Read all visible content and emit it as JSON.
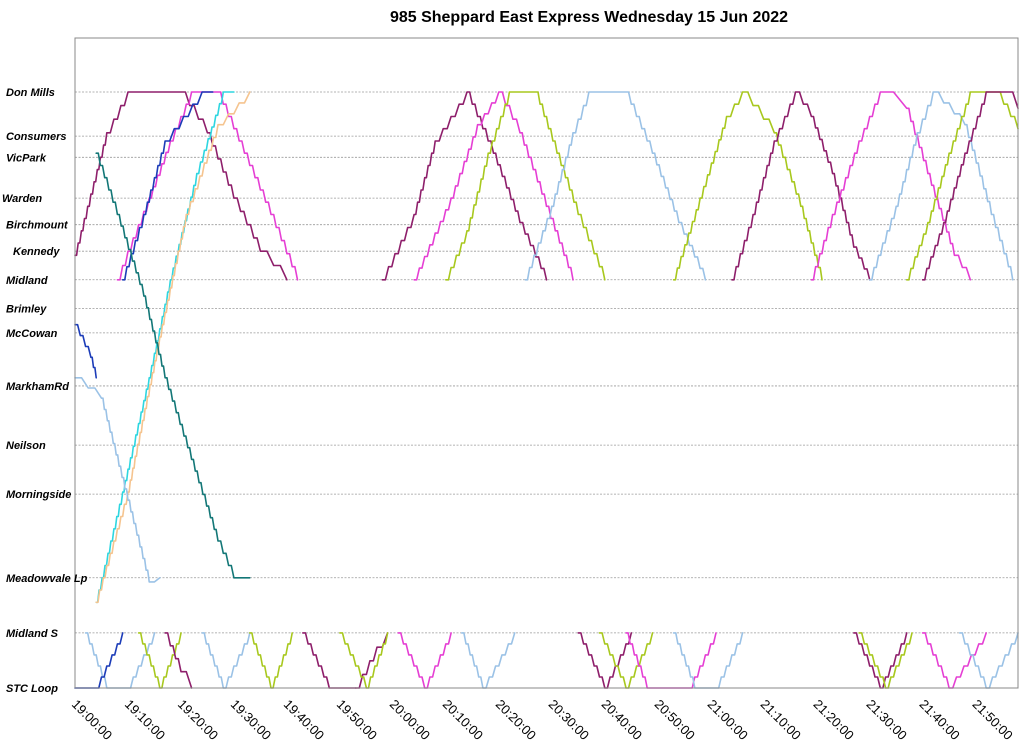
{
  "chart_data": {
    "type": "line",
    "title": "985 Sheppard East Express Wednesday 15 Jun 2022",
    "xlabel": "",
    "ylabel": "",
    "x_ticks": [
      "19:00:00",
      "19:10:00",
      "19:20:00",
      "19:30:00",
      "19:40:00",
      "19:50:00",
      "20:00:00",
      "20:10:00",
      "20:20:00",
      "20:30:00",
      "20:40:00",
      "20:50:00",
      "21:00:00",
      "21:10:00",
      "21:20:00",
      "21:30:00",
      "21:40:00",
      "21:50:00"
    ],
    "x_range_minutes_after_19": [
      0,
      178
    ],
    "stops": [
      {
        "name": "Don Mills",
        "pos": 0
      },
      {
        "name": "Consumers",
        "pos": 1.08
      },
      {
        "name": "VicPark",
        "pos": 1.6
      },
      {
        "name": "Warden",
        "pos": 2.6
      },
      {
        "name": "Birchmount",
        "pos": 3.25
      },
      {
        "name": "Kennedy",
        "pos": 3.9
      },
      {
        "name": "Midland",
        "pos": 4.6
      },
      {
        "name": "Brimley",
        "pos": 5.3
      },
      {
        "name": "McCowan",
        "pos": 5.9
      },
      {
        "name": "MarkhamRd",
        "pos": 7.2
      },
      {
        "name": "Neilson",
        "pos": 8.65
      },
      {
        "name": "Morningside",
        "pos": 9.85
      },
      {
        "name": "Meadowvale Lp",
        "pos": 11.9
      },
      {
        "name": "Midland S",
        "pos": 13.25
      },
      {
        "name": "STC Loop",
        "pos": 14.6
      }
    ],
    "grid": true,
    "legend": "none",
    "series": [
      {
        "color": "#8e1f6b",
        "points": [
          [
            0,
            4.0
          ],
          [
            3,
            2.5
          ],
          [
            6,
            1.0
          ],
          [
            10,
            0
          ],
          [
            20,
            0
          ],
          [
            25,
            1.0
          ],
          [
            30,
            2.6
          ],
          [
            35,
            3.9
          ],
          [
            40,
            4.6
          ]
        ]
      },
      {
        "color": "#e53fd4",
        "points": [
          [
            8,
            4.6
          ],
          [
            10,
            3.9
          ],
          [
            14,
            2.6
          ],
          [
            18,
            1.2
          ],
          [
            22,
            0
          ],
          [
            27,
            0
          ],
          [
            32,
            1.5
          ],
          [
            37,
            3.0
          ],
          [
            42,
            4.6
          ]
        ]
      },
      {
        "color": "#8e1f6b",
        "points": [
          [
            58,
            4.6
          ],
          [
            64,
            3.0
          ],
          [
            68,
            1.2
          ],
          [
            74,
            0
          ],
          [
            79,
            1.5
          ],
          [
            84,
            3.2
          ],
          [
            89,
            4.6
          ]
        ]
      },
      {
        "color": "#e53fd4",
        "points": [
          [
            64,
            4.6
          ],
          [
            71,
            2.6
          ],
          [
            76,
            0.8
          ],
          [
            80,
            0
          ],
          [
            84,
            1.0
          ],
          [
            89,
            2.8
          ],
          [
            94,
            4.6
          ]
        ]
      },
      {
        "color": "#a8c81e",
        "points": [
          [
            70,
            4.6
          ],
          [
            74,
            3.4
          ],
          [
            78,
            1.5
          ],
          [
            82,
            0
          ],
          [
            87,
            0
          ],
          [
            91,
            1.5
          ],
          [
            95,
            3.0
          ],
          [
            100,
            4.6
          ]
        ]
      },
      {
        "color": "#9bc2e6",
        "points": [
          [
            85,
            4.6
          ],
          [
            90,
            2.8
          ],
          [
            94,
            1.0
          ],
          [
            97,
            0
          ],
          [
            104,
            0
          ],
          [
            109,
            1.5
          ],
          [
            114,
            3.2
          ],
          [
            119,
            4.6
          ]
        ]
      },
      {
        "color": "#a8c81e",
        "points": [
          [
            113,
            4.6
          ],
          [
            118,
            2.6
          ],
          [
            123,
            0.6
          ],
          [
            126,
            0
          ],
          [
            132,
            1.0
          ],
          [
            137,
            2.8
          ],
          [
            141,
            4.6
          ]
        ]
      },
      {
        "color": "#8e1f6b",
        "points": [
          [
            124,
            4.6
          ],
          [
            128,
            3.0
          ],
          [
            132,
            1.2
          ],
          [
            136,
            0
          ],
          [
            139,
            0.6
          ],
          [
            143,
            2.0
          ],
          [
            147,
            3.8
          ],
          [
            150,
            4.6
          ]
        ]
      },
      {
        "color": "#e53fd4",
        "points": [
          [
            139,
            4.6
          ],
          [
            143,
            3.0
          ],
          [
            148,
            1.2
          ],
          [
            152,
            0
          ],
          [
            157,
            0.4
          ],
          [
            161,
            2.0
          ],
          [
            166,
            4.0
          ],
          [
            169,
            4.6
          ]
        ]
      },
      {
        "color": "#9bc2e6",
        "points": [
          [
            150,
            4.6
          ],
          [
            155,
            2.8
          ],
          [
            159,
            1.0
          ],
          [
            162,
            0
          ],
          [
            168,
            0.8
          ],
          [
            173,
            3.0
          ],
          [
            177,
            4.6
          ]
        ]
      },
      {
        "color": "#a8c81e",
        "points": [
          [
            157,
            4.6
          ],
          [
            161,
            3.2
          ],
          [
            165,
            1.5
          ],
          [
            169,
            0
          ],
          [
            174,
            0
          ],
          [
            178,
            0.9
          ]
        ]
      },
      {
        "color": "#8e1f6b",
        "points": [
          [
            160,
            4.6
          ],
          [
            164,
            3.2
          ],
          [
            168,
            1.5
          ],
          [
            172,
            0
          ],
          [
            176,
            0
          ],
          [
            178,
            0.4
          ]
        ]
      },
      {
        "color": "#1c3cb8",
        "points": [
          [
            9,
            4.6
          ],
          [
            13,
            3.0
          ],
          [
            17,
            1.2
          ],
          [
            24,
            0
          ],
          [
            26,
            0
          ]
        ]
      },
      {
        "color": "#2ed6e0",
        "points": [
          [
            4,
            12.5
          ],
          [
            9,
            9.8
          ],
          [
            14,
            7.0
          ],
          [
            18,
            4.6
          ],
          [
            23,
            2.0
          ],
          [
            28,
            0
          ],
          [
            30,
            0
          ]
        ]
      },
      {
        "color": "#f5c48f",
        "points": [
          [
            4,
            12.5
          ],
          [
            10,
            9.8
          ],
          [
            16,
            6.0
          ],
          [
            21,
            3.0
          ],
          [
            27,
            0.8
          ],
          [
            33,
            0
          ]
        ]
      },
      {
        "color": "#137777",
        "points": [
          [
            4,
            1.5
          ],
          [
            8,
            3.0
          ],
          [
            13,
            5.0
          ],
          [
            17,
            7.0
          ],
          [
            22,
            9.0
          ],
          [
            27,
            11.0
          ],
          [
            30,
            11.9
          ],
          [
            33,
            11.9
          ]
        ]
      },
      {
        "color": "#9bc2e6",
        "points": [
          [
            0,
            7.0
          ],
          [
            5,
            7.5
          ],
          [
            10,
            10.0
          ],
          [
            14,
            12.0
          ],
          [
            16,
            11.9
          ]
        ]
      },
      {
        "color": "#1c3cb8",
        "points": [
          [
            0,
            5.7
          ],
          [
            3,
            6.5
          ],
          [
            4,
            7.0
          ]
        ]
      },
      {
        "color": "#8e1f6b",
        "points": [
          [
            53,
            14.6
          ],
          [
            57,
            13.6
          ],
          [
            59,
            13.25
          ]
        ]
      },
      {
        "color": "#8e1f6b",
        "points": [
          [
            43,
            13.25
          ],
          [
            48,
            14.6
          ],
          [
            53,
            14.6
          ]
        ]
      },
      {
        "color": "#a8c81e",
        "points": [
          [
            50,
            13.25
          ],
          [
            55,
            14.6
          ],
          [
            59,
            13.25
          ]
        ]
      },
      {
        "color": "#e53fd4",
        "points": [
          [
            61,
            13.25
          ],
          [
            66,
            14.6
          ],
          [
            71,
            13.25
          ]
        ]
      },
      {
        "color": "#9bc2e6",
        "points": [
          [
            73,
            13.25
          ],
          [
            77,
            14.6
          ],
          [
            83,
            13.25
          ]
        ]
      },
      {
        "color": "#8e1f6b",
        "points": [
          [
            95,
            13.25
          ],
          [
            100,
            14.6
          ],
          [
            105,
            13.25
          ]
        ]
      },
      {
        "color": "#a8c81e",
        "points": [
          [
            99,
            13.25
          ],
          [
            104,
            14.6
          ],
          [
            109,
            13.25
          ]
        ]
      },
      {
        "color": "#e53fd4",
        "points": [
          [
            104,
            13.25
          ],
          [
            108,
            14.6
          ],
          [
            116,
            14.6
          ],
          [
            121,
            13.25
          ]
        ]
      },
      {
        "color": "#9bc2e6",
        "points": [
          [
            113,
            13.25
          ],
          [
            117,
            14.6
          ],
          [
            121,
            14.6
          ],
          [
            126,
            13.25
          ]
        ]
      },
      {
        "color": "#8e1f6b",
        "points": [
          [
            147,
            13.25
          ],
          [
            152,
            14.6
          ],
          [
            157,
            13.25
          ]
        ]
      },
      {
        "color": "#a8c81e",
        "points": [
          [
            148,
            13.25
          ],
          [
            153,
            14.6
          ],
          [
            158,
            13.25
          ]
        ]
      },
      {
        "color": "#e53fd4",
        "points": [
          [
            160,
            13.25
          ],
          [
            165,
            14.6
          ],
          [
            172,
            13.25
          ]
        ]
      },
      {
        "color": "#9bc2e6",
        "points": [
          [
            167,
            13.25
          ],
          [
            172,
            14.6
          ],
          [
            178,
            13.25
          ]
        ]
      },
      {
        "color": "#9bc2e6",
        "points": [
          [
            2,
            13.25
          ],
          [
            6,
            14.6
          ],
          [
            10,
            14.6
          ],
          [
            15,
            13.25
          ]
        ]
      },
      {
        "color": "#1c3cb8",
        "points": [
          [
            0,
            14.6
          ],
          [
            4,
            14.6
          ],
          [
            9,
            13.25
          ]
        ]
      },
      {
        "color": "#a8c81e",
        "points": [
          [
            12,
            13.25
          ],
          [
            16,
            14.6
          ],
          [
            20,
            13.25
          ]
        ]
      },
      {
        "color": "#8e1f6b",
        "points": [
          [
            17,
            13.25
          ],
          [
            20,
            14.2
          ],
          [
            22,
            14.6
          ]
        ]
      },
      {
        "color": "#9bc2e6",
        "points": [
          [
            24,
            13.25
          ],
          [
            28,
            14.6
          ],
          [
            33,
            13.25
          ]
        ]
      },
      {
        "color": "#a8c81e",
        "points": [
          [
            33,
            13.25
          ],
          [
            37,
            14.6
          ],
          [
            41,
            13.25
          ]
        ]
      }
    ]
  }
}
